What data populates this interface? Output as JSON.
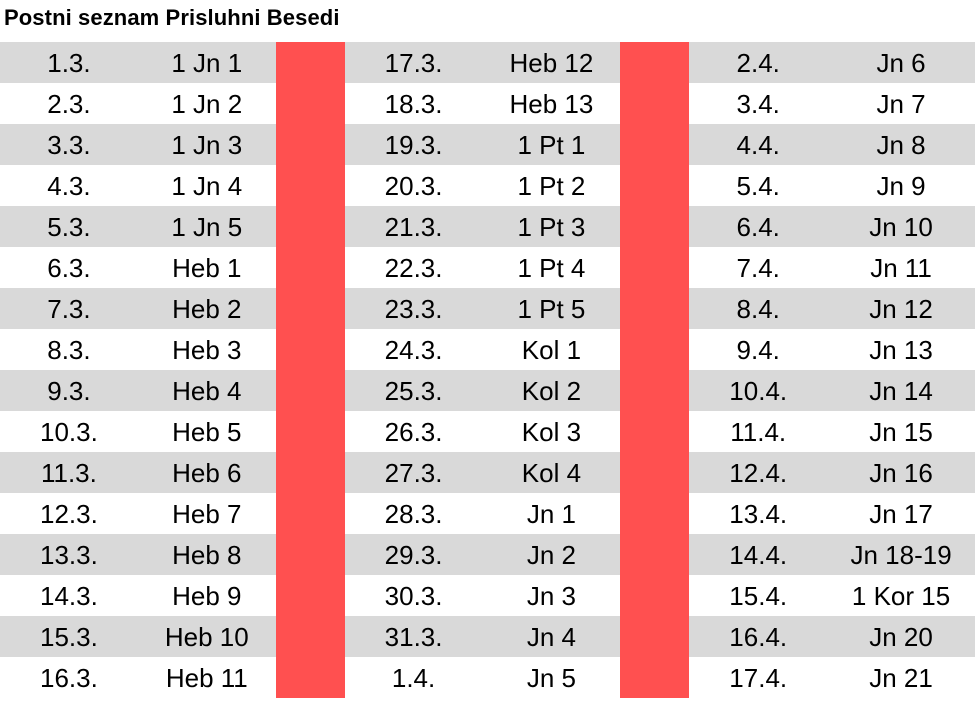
{
  "title": "Postni seznam Prisluhni Besedi",
  "colors": {
    "shade": "#d9d9d9",
    "separator": "#ff5050"
  },
  "rows": [
    [
      {
        "d": "1.3.",
        "r": "1 Jn 1"
      },
      {
        "d": "17.3.",
        "r": "Heb 12"
      },
      {
        "d": "2.4.",
        "r": "Jn 6"
      }
    ],
    [
      {
        "d": "2.3.",
        "r": "1 Jn 2"
      },
      {
        "d": "18.3.",
        "r": "Heb 13"
      },
      {
        "d": "3.4.",
        "r": "Jn 7"
      }
    ],
    [
      {
        "d": "3.3.",
        "r": "1 Jn 3"
      },
      {
        "d": "19.3.",
        "r": "1 Pt 1"
      },
      {
        "d": "4.4.",
        "r": "Jn 8"
      }
    ],
    [
      {
        "d": "4.3.",
        "r": "1 Jn 4"
      },
      {
        "d": "20.3.",
        "r": "1 Pt 2"
      },
      {
        "d": "5.4.",
        "r": "Jn 9"
      }
    ],
    [
      {
        "d": "5.3.",
        "r": "1 Jn 5"
      },
      {
        "d": "21.3.",
        "r": "1 Pt 3"
      },
      {
        "d": "6.4.",
        "r": "Jn 10"
      }
    ],
    [
      {
        "d": "6.3.",
        "r": "Heb 1"
      },
      {
        "d": "22.3.",
        "r": "1 Pt 4"
      },
      {
        "d": "7.4.",
        "r": "Jn 11"
      }
    ],
    [
      {
        "d": "7.3.",
        "r": "Heb 2"
      },
      {
        "d": "23.3.",
        "r": "1 Pt 5"
      },
      {
        "d": "8.4.",
        "r": "Jn 12"
      }
    ],
    [
      {
        "d": "8.3.",
        "r": "Heb 3"
      },
      {
        "d": "24.3.",
        "r": "Kol 1"
      },
      {
        "d": "9.4.",
        "r": "Jn 13"
      }
    ],
    [
      {
        "d": "9.3.",
        "r": "Heb 4"
      },
      {
        "d": "25.3.",
        "r": "Kol 2"
      },
      {
        "d": "10.4.",
        "r": "Jn 14"
      }
    ],
    [
      {
        "d": "10.3.",
        "r": "Heb 5"
      },
      {
        "d": "26.3.",
        "r": "Kol 3"
      },
      {
        "d": "11.4.",
        "r": "Jn 15"
      }
    ],
    [
      {
        "d": "11.3.",
        "r": "Heb 6"
      },
      {
        "d": "27.3.",
        "r": "Kol 4"
      },
      {
        "d": "12.4.",
        "r": "Jn 16"
      }
    ],
    [
      {
        "d": "12.3.",
        "r": "Heb 7"
      },
      {
        "d": "28.3.",
        "r": "Jn 1"
      },
      {
        "d": "13.4.",
        "r": "Jn 17"
      }
    ],
    [
      {
        "d": "13.3.",
        "r": "Heb 8"
      },
      {
        "d": "29.3.",
        "r": "Jn 2"
      },
      {
        "d": "14.4.",
        "r": "Jn 18-19"
      }
    ],
    [
      {
        "d": "14.3.",
        "r": "Heb 9"
      },
      {
        "d": "30.3.",
        "r": "Jn 3"
      },
      {
        "d": "15.4.",
        "r": "1 Kor 15"
      }
    ],
    [
      {
        "d": "15.3.",
        "r": "Heb 10"
      },
      {
        "d": "31.3.",
        "r": "Jn 4"
      },
      {
        "d": "16.4.",
        "r": "Jn 20"
      }
    ],
    [
      {
        "d": "16.3.",
        "r": "Heb 11"
      },
      {
        "d": "1.4.",
        "r": "Jn 5"
      },
      {
        "d": "17.4.",
        "r": "Jn 21"
      }
    ]
  ]
}
